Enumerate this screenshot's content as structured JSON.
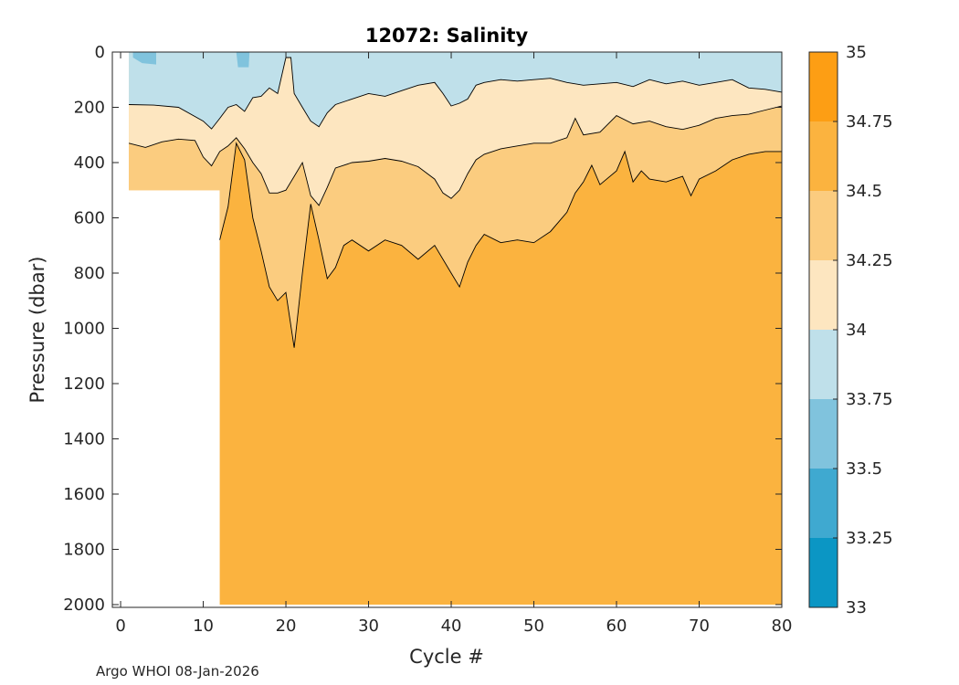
{
  "chart_data": {
    "type": "filled-contour",
    "title": "12072:  Salinity",
    "xlabel": "Cycle #",
    "ylabel": "Pressure (dbar)",
    "xlim": [
      -1,
      80
    ],
    "ylim": [
      2010,
      0
    ],
    "x_ticks": [
      0,
      10,
      20,
      30,
      40,
      50,
      60,
      70,
      80
    ],
    "x_tick_labels": [
      "0",
      "10",
      "20",
      "30",
      "40",
      "50",
      "60",
      "70",
      "80"
    ],
    "y_ticks": [
      0,
      200,
      400,
      600,
      800,
      1000,
      1200,
      1400,
      1600,
      1800,
      2000
    ],
    "y_tick_labels": [
      "0",
      "200",
      "400",
      "600",
      "800",
      "1000",
      "1200",
      "1400",
      "1600",
      "1800",
      "2000"
    ],
    "colorbar": {
      "levels": [
        33,
        33.25,
        33.5,
        33.75,
        34,
        34.25,
        34.5,
        34.75,
        35
      ],
      "labels": [
        "33",
        "33.25",
        "33.5",
        "33.75",
        "34",
        "34.25",
        "34.5",
        "34.75",
        "35"
      ],
      "colors": [
        "#0b96c4",
        "#3fa9d0",
        "#80c3dd",
        "#bfe0ea",
        "#fde6c0",
        "#fbcc7f",
        "#fbb33f",
        "#fd9e14"
      ]
    },
    "contours": {
      "s34_00": [
        [
          1,
          190
        ],
        [
          4,
          192
        ],
        [
          7,
          200
        ],
        [
          10,
          250
        ],
        [
          11,
          278
        ],
        [
          12,
          240
        ],
        [
          13,
          200
        ],
        [
          14,
          190
        ],
        [
          15,
          215
        ],
        [
          16,
          165
        ],
        [
          17,
          160
        ],
        [
          18,
          130
        ],
        [
          19,
          150
        ],
        [
          20,
          20
        ],
        [
          20.6,
          20
        ],
        [
          21,
          150
        ],
        [
          22,
          200
        ],
        [
          23,
          250
        ],
        [
          24,
          270
        ],
        [
          25,
          220
        ],
        [
          26,
          190
        ],
        [
          28,
          170
        ],
        [
          30,
          150
        ],
        [
          32,
          160
        ],
        [
          34,
          140
        ],
        [
          36,
          120
        ],
        [
          38,
          110
        ],
        [
          39,
          150
        ],
        [
          40,
          195
        ],
        [
          41,
          185
        ],
        [
          42,
          170
        ],
        [
          43,
          120
        ],
        [
          44,
          110
        ],
        [
          46,
          100
        ],
        [
          48,
          105
        ],
        [
          50,
          100
        ],
        [
          52,
          95
        ],
        [
          54,
          110
        ],
        [
          56,
          120
        ],
        [
          58,
          115
        ],
        [
          60,
          110
        ],
        [
          62,
          125
        ],
        [
          64,
          100
        ],
        [
          66,
          115
        ],
        [
          68,
          105
        ],
        [
          70,
          120
        ],
        [
          72,
          110
        ],
        [
          74,
          100
        ],
        [
          76,
          130
        ],
        [
          78,
          135
        ],
        [
          80,
          145
        ]
      ],
      "s34_25": [
        [
          1,
          330
        ],
        [
          3,
          345
        ],
        [
          5,
          325
        ],
        [
          7,
          315
        ],
        [
          9,
          320
        ],
        [
          10,
          380
        ],
        [
          11,
          412
        ],
        [
          12,
          360
        ],
        [
          13,
          340
        ],
        [
          14,
          310
        ],
        [
          15,
          350
        ],
        [
          16,
          400
        ],
        [
          17,
          440
        ],
        [
          18,
          510
        ],
        [
          19,
          510
        ],
        [
          20,
          500
        ],
        [
          21,
          450
        ],
        [
          22,
          400
        ],
        [
          23,
          520
        ],
        [
          24,
          555
        ],
        [
          25,
          490
        ],
        [
          26,
          420
        ],
        [
          28,
          400
        ],
        [
          30,
          395
        ],
        [
          32,
          385
        ],
        [
          34,
          395
        ],
        [
          36,
          415
        ],
        [
          38,
          460
        ],
        [
          39,
          510
        ],
        [
          40,
          530
        ],
        [
          41,
          500
        ],
        [
          42,
          440
        ],
        [
          43,
          390
        ],
        [
          44,
          370
        ],
        [
          46,
          350
        ],
        [
          48,
          340
        ],
        [
          50,
          330
        ],
        [
          52,
          330
        ],
        [
          54,
          310
        ],
        [
          55,
          240
        ],
        [
          56,
          300
        ],
        [
          58,
          290
        ],
        [
          60,
          230
        ],
        [
          62,
          260
        ],
        [
          64,
          250
        ],
        [
          66,
          270
        ],
        [
          68,
          280
        ],
        [
          70,
          265
        ],
        [
          72,
          240
        ],
        [
          74,
          230
        ],
        [
          76,
          225
        ],
        [
          78,
          210
        ],
        [
          80,
          195
        ]
      ],
      "s34_50": [
        [
          12,
          680
        ],
        [
          13,
          560
        ],
        [
          14,
          330
        ],
        [
          15,
          390
        ],
        [
          16,
          600
        ],
        [
          17,
          720
        ],
        [
          18,
          850
        ],
        [
          19,
          900
        ],
        [
          20,
          870
        ],
        [
          21,
          1070
        ],
        [
          22,
          800
        ],
        [
          23,
          550
        ],
        [
          24,
          680
        ],
        [
          25,
          820
        ],
        [
          26,
          780
        ],
        [
          27,
          700
        ],
        [
          28,
          680
        ],
        [
          30,
          720
        ],
        [
          32,
          680
        ],
        [
          34,
          700
        ],
        [
          36,
          750
        ],
        [
          38,
          700
        ],
        [
          40,
          800
        ],
        [
          41,
          850
        ],
        [
          42,
          760
        ],
        [
          43,
          700
        ],
        [
          44,
          660
        ],
        [
          46,
          690
        ],
        [
          48,
          680
        ],
        [
          50,
          690
        ],
        [
          52,
          650
        ],
        [
          54,
          580
        ],
        [
          55,
          510
        ],
        [
          56,
          470
        ],
        [
          57,
          410
        ],
        [
          58,
          480
        ],
        [
          60,
          430
        ],
        [
          61,
          360
        ],
        [
          62,
          470
        ],
        [
          63,
          430
        ],
        [
          64,
          460
        ],
        [
          66,
          470
        ],
        [
          68,
          450
        ],
        [
          69,
          520
        ],
        [
          70,
          460
        ],
        [
          72,
          430
        ],
        [
          74,
          390
        ],
        [
          76,
          370
        ],
        [
          78,
          360
        ],
        [
          80,
          360
        ]
      ]
    },
    "data_extent": {
      "profiles_start_cycle": 1,
      "full_depth_start_cycle": 12,
      "early_profile_max_pressure": 500,
      "max_pressure": 2000,
      "last_cycle": 80
    }
  },
  "footer": {
    "credit": "Argo WHOI 08-Jan-2026"
  }
}
